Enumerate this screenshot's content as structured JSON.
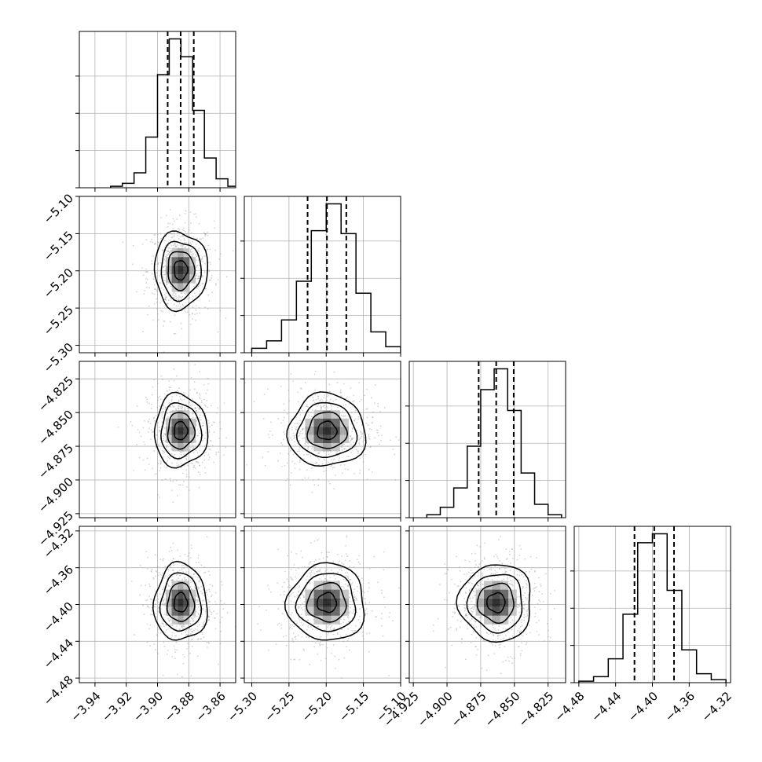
{
  "chart_data": {
    "type": "corner",
    "colors": {
      "ink": "#000000",
      "grid": "#b0b0b0",
      "scatter": "#9e9e9e"
    },
    "grid": true,
    "parameters": [
      {
        "range": [
          -3.95,
          -3.85
        ],
        "ticks": [
          -3.94,
          -3.92,
          -3.9,
          -3.88,
          -3.86
        ],
        "tick_labels": [
          "−3.94",
          "−3.92",
          "−3.90",
          "−3.88",
          "−3.86"
        ],
        "mean": -3.8852,
        "sigma": 0.0085,
        "quantiles": [
          -3.8935,
          -3.8852,
          -3.8768
        ]
      },
      {
        "range": [
          -5.31,
          -5.1
        ],
        "ticks": [
          -5.3,
          -5.25,
          -5.2,
          -5.15,
          -5.1
        ],
        "tick_labels": [
          "−5.30",
          "−5.25",
          "−5.20",
          "−5.15",
          "−5.10"
        ],
        "mean": -5.199,
        "sigma": 0.026,
        "quantiles": [
          -5.225,
          -5.199,
          -5.173
        ]
      },
      {
        "range": [
          -4.928,
          -4.812
        ],
        "ticks": [
          -4.925,
          -4.9,
          -4.875,
          -4.85,
          -4.825
        ],
        "tick_labels": [
          "−4.925",
          "−4.900",
          "−4.875",
          "−4.850",
          "−4.825"
        ],
        "mean": -4.8635,
        "sigma": 0.0135,
        "quantiles": [
          -4.8765,
          -4.8635,
          -4.8505
        ]
      },
      {
        "range": [
          -4.485,
          -4.315
        ],
        "ticks": [
          -4.48,
          -4.44,
          -4.4,
          -4.36,
          -4.32
        ],
        "tick_labels": [
          "−4.48",
          "−4.44",
          "−4.40",
          "−4.36",
          "−4.32"
        ],
        "mean": -4.398,
        "sigma": 0.021,
        "quantiles": [
          -4.4195,
          -4.398,
          -4.3765
        ]
      }
    ],
    "histograms": [
      {
        "edges": [
          -3.93,
          -3.9225,
          -3.915,
          -3.9075,
          -3.9,
          -3.8925,
          -3.885,
          -3.8775,
          -3.87,
          -3.8625,
          -3.855,
          -3.8475
        ],
        "counts": [
          0.01,
          0.03,
          0.1,
          0.34,
          0.76,
          1.0,
          0.88,
          0.52,
          0.2,
          0.06,
          0.01
        ]
      },
      {
        "edges": [
          -5.3,
          -5.28,
          -5.26,
          -5.24,
          -5.22,
          -5.2,
          -5.18,
          -5.16,
          -5.14,
          -5.12,
          -5.1
        ],
        "counts": [
          0.03,
          0.08,
          0.22,
          0.48,
          0.82,
          1.0,
          0.8,
          0.4,
          0.14,
          0.04
        ]
      },
      {
        "edges": [
          -4.915,
          -4.905,
          -4.895,
          -4.885,
          -4.875,
          -4.865,
          -4.855,
          -4.845,
          -4.835,
          -4.825,
          -4.815
        ],
        "counts": [
          0.02,
          0.07,
          0.2,
          0.48,
          0.86,
          1.0,
          0.72,
          0.3,
          0.09,
          0.02
        ]
      },
      {
        "edges": [
          -4.48,
          -4.464,
          -4.448,
          -4.432,
          -4.416,
          -4.4,
          -4.384,
          -4.368,
          -4.352,
          -4.336,
          -4.32
        ],
        "counts": [
          0.01,
          0.04,
          0.16,
          0.46,
          0.94,
          1.0,
          0.62,
          0.22,
          0.06,
          0.02
        ]
      }
    ],
    "correlations": [
      [
        1.0,
        0.0,
        0.0,
        0.0
      ],
      [
        0.0,
        1.0,
        0.0,
        0.0
      ],
      [
        0.0,
        0.0,
        1.0,
        0.0
      ],
      [
        0.0,
        0.0,
        0.0,
        1.0
      ]
    ],
    "contour_levels_sigma": [
      0.5,
      1.0,
      1.5,
      2.0
    ]
  }
}
